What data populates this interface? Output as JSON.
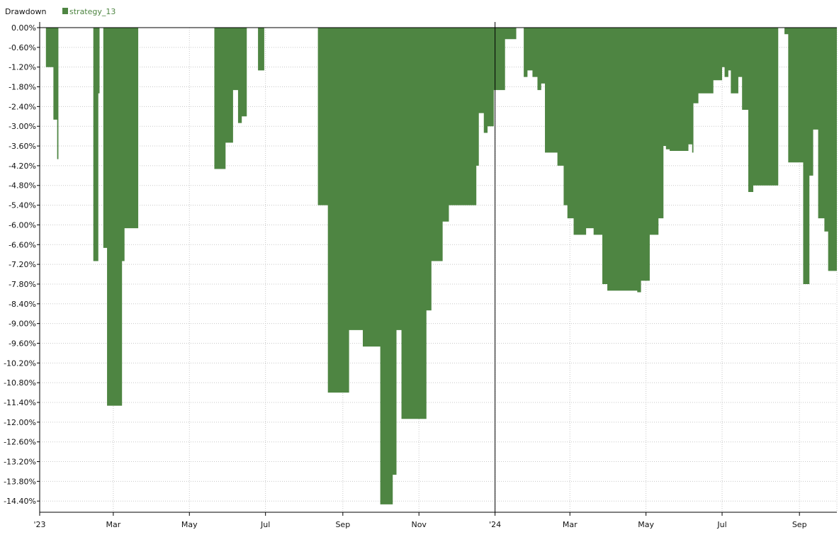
{
  "chart_data": {
    "type": "area",
    "title": "Drawdown",
    "xlabel": "",
    "ylabel": "",
    "ylim": [
      -14.74,
      0.05
    ],
    "grid": true,
    "legend_position": "top-left",
    "colors": {
      "series": "#4e8542",
      "grid": "#c8c8c8",
      "axis": "#000000"
    },
    "y_ticks": [
      0.0,
      -0.6,
      -1.2,
      -1.8,
      -2.4,
      -3.0,
      -3.6,
      -4.2,
      -4.8,
      -5.4,
      -6.0,
      -6.6,
      -7.2,
      -7.8,
      -8.4,
      -9.0,
      -9.6,
      -10.2,
      -10.8,
      -11.4,
      -12.0,
      -12.6,
      -13.2,
      -13.8,
      -14.4
    ],
    "y_tick_labels": [
      "0.00%",
      "-0.60%",
      "-1.20%",
      "-1.80%",
      "-2.40%",
      "-3.00%",
      "-3.60%",
      "-4.20%",
      "-4.80%",
      "-5.40%",
      "-6.00%",
      "-6.60%",
      "-7.20%",
      "-7.80%",
      "-8.40%",
      "-9.00%",
      "-9.60%",
      "-10.20%",
      "-10.80%",
      "-11.40%",
      "-12.00%",
      "-12.60%",
      "-13.20%",
      "-13.80%",
      "-14.40%"
    ],
    "x_ticks": [
      {
        "label": "'23",
        "date": "2023-01-01"
      },
      {
        "label": "Mar",
        "date": "2023-03-01"
      },
      {
        "label": "May",
        "date": "2023-05-01"
      },
      {
        "label": "Jul",
        "date": "2023-07-01"
      },
      {
        "label": "Sep",
        "date": "2023-09-01"
      },
      {
        "label": "Nov",
        "date": "2023-11-01"
      },
      {
        "label": "'24",
        "date": "2024-01-01"
      },
      {
        "label": "Mar",
        "date": "2024-03-01"
      },
      {
        "label": "May",
        "date": "2024-05-01"
      },
      {
        "label": "Jul",
        "date": "2024-07-01"
      },
      {
        "label": "Sep",
        "date": "2024-09-01"
      }
    ],
    "x_range": [
      "2023-01-01",
      "2024-10-01"
    ],
    "series": [
      {
        "name": "strategy_13",
        "steps": [
          [
            "2023-01-06",
            -1.2
          ],
          [
            "2023-01-12",
            -2.8
          ],
          [
            "2023-01-15",
            -4.0
          ],
          [
            "2023-01-16",
            0.0
          ],
          [
            "2023-02-13",
            -7.1
          ],
          [
            "2023-02-17",
            -2.0
          ],
          [
            "2023-02-18",
            0.0
          ],
          [
            "2023-02-21",
            -6.7
          ],
          [
            "2023-02-24",
            -11.5
          ],
          [
            "2023-03-08",
            -7.1
          ],
          [
            "2023-03-10",
            -6.1
          ],
          [
            "2023-03-21",
            0.0
          ],
          [
            "2023-05-21",
            -4.3
          ],
          [
            "2023-05-30",
            -3.5
          ],
          [
            "2023-06-05",
            -1.9
          ],
          [
            "2023-06-09",
            -2.9
          ],
          [
            "2023-06-12",
            -2.7
          ],
          [
            "2023-06-16",
            0.0
          ],
          [
            "2023-06-25",
            -1.3
          ],
          [
            "2023-06-30",
            0.0
          ],
          [
            "2023-08-12",
            -5.4
          ],
          [
            "2023-08-20",
            -11.1
          ],
          [
            "2023-09-06",
            -9.2
          ],
          [
            "2023-09-17",
            -9.7
          ],
          [
            "2023-10-01",
            -14.5
          ],
          [
            "2023-10-11",
            -13.6
          ],
          [
            "2023-10-14",
            -9.2
          ],
          [
            "2023-10-18",
            -11.9
          ],
          [
            "2023-11-07",
            -8.6
          ],
          [
            "2023-11-11",
            -7.1
          ],
          [
            "2023-11-20",
            -5.9
          ],
          [
            "2023-11-25",
            -5.4
          ],
          [
            "2023-12-17",
            -4.2
          ],
          [
            "2023-12-19",
            -2.6
          ],
          [
            "2023-12-23",
            -3.2
          ],
          [
            "2023-12-26",
            -3.0
          ],
          [
            "2023-12-31",
            -1.9
          ],
          [
            "2024-01-09",
            -0.35
          ],
          [
            "2024-01-18",
            0.0
          ],
          [
            "2024-01-24",
            -1.5
          ],
          [
            "2024-01-27",
            -1.3
          ],
          [
            "2024-01-31",
            -1.5
          ],
          [
            "2024-02-04",
            -1.9
          ],
          [
            "2024-02-07",
            -1.7
          ],
          [
            "2024-02-10",
            -3.8
          ],
          [
            "2024-02-20",
            -4.2
          ],
          [
            "2024-02-25",
            -5.4
          ],
          [
            "2024-02-28",
            -5.8
          ],
          [
            "2024-03-04",
            -6.3
          ],
          [
            "2024-03-14",
            -6.1
          ],
          [
            "2024-03-20",
            -6.3
          ],
          [
            "2024-03-27",
            -7.8
          ],
          [
            "2024-03-31",
            -8.0
          ],
          [
            "2024-04-24",
            -8.05
          ],
          [
            "2024-04-27",
            -7.7
          ],
          [
            "2024-05-04",
            -6.3
          ],
          [
            "2024-05-11",
            -5.8
          ],
          [
            "2024-05-15",
            -3.6
          ],
          [
            "2024-05-17",
            -3.7
          ],
          [
            "2024-05-20",
            -3.75
          ],
          [
            "2024-06-04",
            -3.55
          ],
          [
            "2024-06-07",
            -3.8
          ],
          [
            "2024-06-08",
            -2.3
          ],
          [
            "2024-06-12",
            -2.0
          ],
          [
            "2024-06-24",
            -1.6
          ],
          [
            "2024-07-01",
            -1.2
          ],
          [
            "2024-07-03",
            -1.5
          ],
          [
            "2024-07-06",
            -1.3
          ],
          [
            "2024-07-08",
            -2.0
          ],
          [
            "2024-07-14",
            -1.5
          ],
          [
            "2024-07-17",
            -2.5
          ],
          [
            "2024-07-22",
            -5.0
          ],
          [
            "2024-07-26",
            -4.8
          ],
          [
            "2024-08-15",
            0.0
          ],
          [
            "2024-08-20",
            -0.2
          ],
          [
            "2024-08-23",
            -4.1
          ],
          [
            "2024-09-04",
            -7.8
          ],
          [
            "2024-09-09",
            -4.5
          ],
          [
            "2024-09-12",
            -3.1
          ],
          [
            "2024-09-16",
            -5.8
          ],
          [
            "2024-09-21",
            -6.2
          ],
          [
            "2024-09-24",
            -7.4
          ],
          [
            "2024-09-30",
            -7.4
          ]
        ]
      }
    ]
  }
}
